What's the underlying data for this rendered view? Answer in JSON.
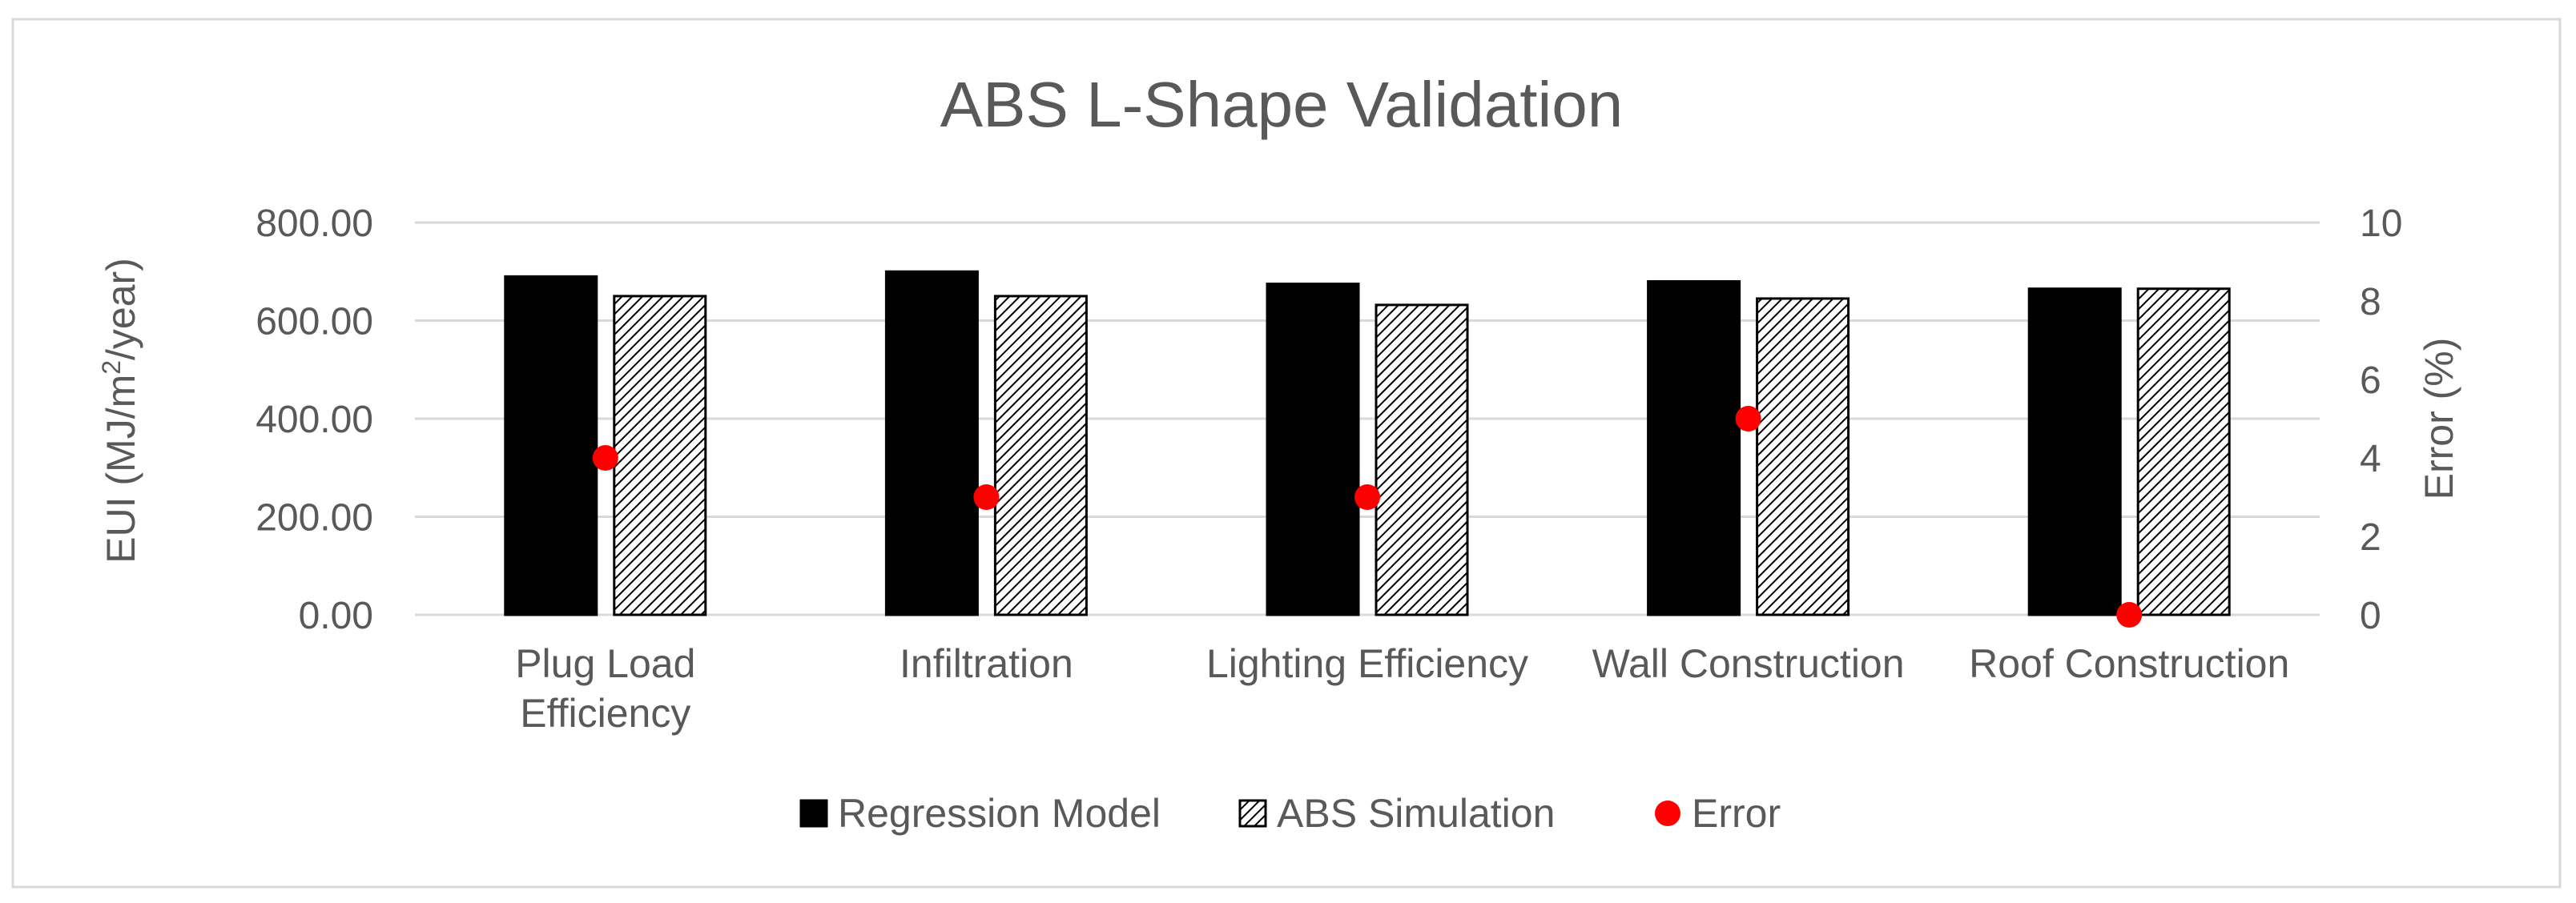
{
  "chart_data": {
    "type": "bar",
    "title": "ABS L-Shape Validation",
    "categories": [
      [
        "Plug Load",
        "Efficiency"
      ],
      [
        "Infiltration"
      ],
      [
        "Lighting Efficiency"
      ],
      [
        "Wall Construction"
      ],
      [
        "Roof Construction"
      ]
    ],
    "series": [
      {
        "name": "Regression Model",
        "kind": "bar",
        "axis": "left",
        "pattern": "solid",
        "color": "#000000",
        "values": [
          690,
          700,
          675,
          680,
          665
        ]
      },
      {
        "name": "ABS Simulation",
        "kind": "bar",
        "axis": "left",
        "pattern": "hatch",
        "color": "#000000",
        "values": [
          650,
          650,
          632,
          645,
          665
        ]
      },
      {
        "name": "Error",
        "kind": "scatter",
        "axis": "right",
        "color": "#ff0000",
        "values": [
          4,
          3,
          3,
          5,
          0
        ]
      }
    ],
    "left_axis": {
      "label_prefix": "EUI (MJ/m",
      "label_sup": "2",
      "label_suffix": "/year)",
      "ylim": [
        0,
        800
      ],
      "ticks": [
        "0.00",
        "200.00",
        "400.00",
        "600.00",
        "800.00"
      ],
      "tick_values": [
        0,
        200,
        400,
        600,
        800
      ]
    },
    "right_axis": {
      "label": "Error (%)",
      "ylim": [
        0,
        10
      ],
      "ticks": [
        "0",
        "2",
        "4",
        "6",
        "8",
        "10"
      ],
      "tick_values": [
        0,
        2,
        4,
        6,
        8,
        10
      ]
    },
    "grid": true,
    "legend_position": "bottom-center",
    "colors": {
      "text": "#595959",
      "grid": "#d9d9d9",
      "frame": "#d9d9d9",
      "bar": "#000000",
      "error": "#ff0000"
    }
  }
}
